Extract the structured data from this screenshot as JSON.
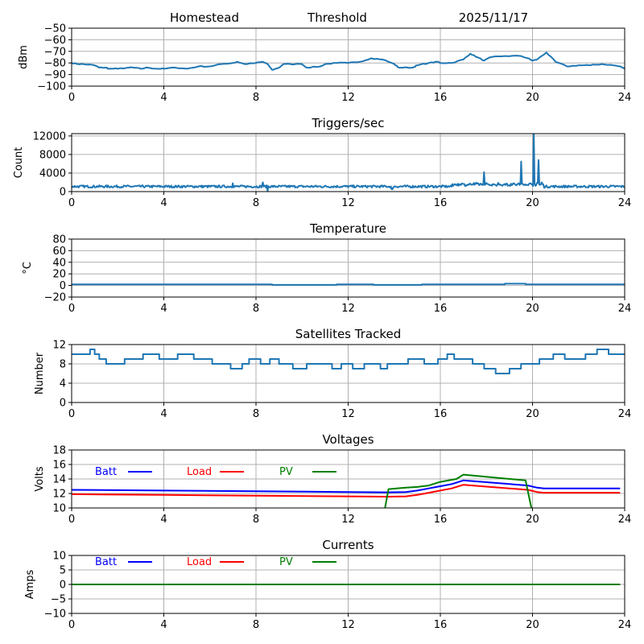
{
  "header": {
    "location": "Homestead",
    "mode": "Threshold",
    "date": "2025/11/17"
  },
  "chart_data": [
    {
      "id": "signal",
      "type": "line",
      "title": "",
      "xlabel": "",
      "ylabel": "dBm",
      "xlim": [
        0,
        24
      ],
      "ylim": [
        -100,
        -50
      ],
      "xticks": [
        "0",
        "4",
        "8",
        "12",
        "16",
        "20",
        "24"
      ],
      "yticks": [
        "−50",
        "−60",
        "−70",
        "−80",
        "−90",
        "−100"
      ],
      "ytick_values": [
        -50,
        -60,
        -70,
        -80,
        -90,
        -100
      ],
      "grid": true,
      "series": [
        {
          "name": "signal",
          "color": "#1f77b4",
          "x": [
            0,
            0.3,
            0.5,
            1.0,
            1.2,
            1.5,
            1.6,
            2.0,
            2.5,
            2.7,
            3.0,
            3.3,
            3.7,
            4.0,
            4.5,
            5.0,
            5.5,
            6.0,
            6.5,
            7.0,
            7.2,
            7.5,
            8.0,
            8.3,
            8.5,
            8.7,
            9.0,
            9.2,
            10.0,
            10.2,
            10.8,
            11.0,
            11.5,
            12.0,
            12.5,
            13.0,
            13.5,
            14.0,
            14.2,
            14.8,
            15.0,
            15.5,
            15.9,
            16.0,
            16.5,
            17.0,
            17.3,
            17.6,
            17.9,
            18.2,
            18.8,
            19.5,
            19.8,
            20.0,
            20.2,
            20.6,
            21.0,
            21.5,
            22.0,
            22.5,
            23.0,
            23.5,
            23.8,
            24.0
          ],
          "y": [
            -80,
            -81,
            -81,
            -82,
            -84,
            -84,
            -85,
            -85,
            -84,
            -84,
            -85,
            -84,
            -85,
            -85,
            -84,
            -85,
            -83,
            -83,
            -81,
            -80,
            -79,
            -81,
            -80,
            -79,
            -81,
            -86,
            -84,
            -81,
            -81,
            -84,
            -83,
            -81,
            -80,
            -80,
            -79,
            -76,
            -77,
            -81,
            -84,
            -84,
            -82,
            -80,
            -79,
            -80,
            -80,
            -77,
            -72,
            -75,
            -78,
            -75,
            -74,
            -74,
            -76,
            -78,
            -77,
            -71,
            -79,
            -83,
            -82,
            -82,
            -81,
            -82,
            -83,
            -85
          ]
        }
      ]
    },
    {
      "id": "triggers",
      "type": "line",
      "title": "Triggers/sec",
      "xlabel": "",
      "ylabel": "Count",
      "xlim": [
        0,
        24
      ],
      "ylim": [
        0,
        12500
      ],
      "xticks": [
        "0",
        "4",
        "8",
        "12",
        "16",
        "20",
        "24"
      ],
      "yticks": [
        "12000",
        "8000",
        "4000",
        "0"
      ],
      "ytick_values": [
        12000,
        8000,
        4000,
        0
      ],
      "grid": true,
      "series": [
        {
          "name": "triggers",
          "color": "#1f77b4",
          "baseline": 1100,
          "spikes": [
            [
              7.0,
              1800
            ],
            [
              8.3,
              2000
            ],
            [
              8.5,
              100
            ],
            [
              13.9,
              500
            ],
            [
              17.9,
              4200
            ],
            [
              19.5,
              6500
            ],
            [
              20.05,
              12500
            ],
            [
              20.25,
              6800
            ],
            [
              20.4,
              2000
            ]
          ]
        }
      ]
    },
    {
      "id": "temperature",
      "type": "line",
      "title": "Temperature",
      "xlabel": "",
      "ylabel": "°C",
      "xlim": [
        0,
        24
      ],
      "ylim": [
        -20,
        80
      ],
      "xticks": [
        "0",
        "4",
        "8",
        "12",
        "16",
        "20",
        "24"
      ],
      "yticks": [
        "80",
        "60",
        "40",
        "20",
        "0",
        "−20"
      ],
      "ytick_values": [
        80,
        60,
        40,
        20,
        0,
        -20
      ],
      "grid": true,
      "series": [
        {
          "name": "temperature",
          "color": "#1f77b4",
          "x": [
            0,
            8.7,
            8.7,
            11.5,
            11.5,
            13.1,
            13.1,
            15.2,
            15.2,
            18.8,
            18.8,
            19.7,
            19.7,
            24
          ],
          "y": [
            2,
            2,
            1,
            1,
            2,
            2,
            1,
            1,
            2,
            2,
            3,
            3,
            2,
            2
          ]
        }
      ]
    },
    {
      "id": "satellites",
      "type": "line",
      "title": "Satellites Tracked",
      "xlabel": "",
      "ylabel": "Number",
      "xlim": [
        0,
        24
      ],
      "ylim": [
        0,
        12
      ],
      "xticks": [
        "0",
        "4",
        "8",
        "12",
        "16",
        "20",
        "24"
      ],
      "yticks": [
        "12",
        "8",
        "4",
        "0"
      ],
      "ytick_values": [
        12,
        8,
        4,
        0
      ],
      "grid": true,
      "series": [
        {
          "name": "satellites",
          "color": "#1f77b4",
          "x": [
            0,
            0.8,
            0.8,
            1.0,
            1.0,
            1.2,
            1.2,
            1.5,
            1.5,
            2.3,
            2.3,
            3.1,
            3.1,
            3.8,
            3.8,
            4.6,
            4.6,
            5.3,
            5.3,
            6.1,
            6.1,
            6.9,
            6.9,
            7.4,
            7.4,
            7.7,
            7.7,
            8.2,
            8.2,
            8.6,
            8.6,
            9.0,
            9.0,
            9.6,
            9.6,
            10.2,
            10.2,
            11.3,
            11.3,
            11.7,
            11.7,
            12.2,
            12.2,
            12.7,
            12.7,
            13.4,
            13.4,
            13.7,
            13.7,
            14.6,
            14.6,
            15.3,
            15.3,
            15.9,
            15.9,
            16.3,
            16.3,
            16.6,
            16.6,
            17.4,
            17.4,
            17.9,
            17.9,
            18.4,
            18.4,
            19.0,
            19.0,
            19.5,
            19.5,
            20.3,
            20.3,
            20.9,
            20.9,
            21.4,
            21.4,
            22.3,
            22.3,
            22.8,
            22.8,
            23.3,
            23.3,
            24
          ],
          "y": [
            10,
            10,
            11,
            11,
            10,
            10,
            9,
            9,
            8,
            8,
            9,
            9,
            10,
            10,
            9,
            9,
            10,
            10,
            9,
            9,
            8,
            8,
            7,
            7,
            8,
            8,
            9,
            9,
            8,
            8,
            9,
            9,
            8,
            8,
            7,
            7,
            8,
            8,
            7,
            7,
            8,
            8,
            7,
            7,
            8,
            8,
            7,
            7,
            8,
            8,
            9,
            9,
            8,
            8,
            9,
            9,
            10,
            10,
            9,
            9,
            8,
            8,
            7,
            7,
            6,
            6,
            7,
            7,
            8,
            8,
            9,
            9,
            10,
            10,
            9,
            9,
            10,
            10,
            11,
            11,
            10,
            10
          ]
        }
      ]
    },
    {
      "id": "voltages",
      "type": "line",
      "title": "Voltages",
      "xlabel": "",
      "ylabel": "Volts",
      "xlim": [
        0,
        24
      ],
      "ylim": [
        10,
        18
      ],
      "xticks": [
        "0",
        "4",
        "8",
        "12",
        "16",
        "20",
        "24"
      ],
      "yticks": [
        "18",
        "16",
        "14",
        "12",
        "10"
      ],
      "ytick_values": [
        18,
        16,
        14,
        12,
        10
      ],
      "grid": true,
      "legend": [
        {
          "label": "Batt",
          "color": "#0000ff"
        },
        {
          "label": "Load",
          "color": "#ff0000"
        },
        {
          "label": "PV",
          "color": "#008000"
        }
      ],
      "series": [
        {
          "name": "Batt",
          "color": "#0000ff",
          "x": [
            0,
            4,
            8,
            12,
            13.7,
            14.5,
            15.0,
            15.5,
            16.0,
            16.5,
            17.0,
            19.8,
            20.2,
            20.5,
            23.8
          ],
          "y": [
            12.5,
            12.4,
            12.3,
            12.2,
            12.15,
            12.2,
            12.4,
            12.7,
            13.0,
            13.3,
            13.8,
            13.1,
            12.8,
            12.7,
            12.7
          ]
        },
        {
          "name": "Load",
          "color": "#ff0000",
          "x": [
            0,
            4,
            8,
            12,
            13.7,
            14.5,
            15.0,
            15.5,
            16.0,
            16.5,
            17.0,
            19.8,
            20.2,
            20.5,
            23.8
          ],
          "y": [
            11.9,
            11.8,
            11.7,
            11.6,
            11.55,
            11.6,
            11.8,
            12.1,
            12.4,
            12.7,
            13.2,
            12.5,
            12.2,
            12.1,
            12.1
          ]
        },
        {
          "name": "PV",
          "color": "#008000",
          "x": [
            13.6,
            13.75,
            14.5,
            15.0,
            15.5,
            16.0,
            16.7,
            17.0,
            19.7,
            19.95
          ],
          "y": [
            10,
            12.6,
            12.8,
            12.9,
            13.1,
            13.6,
            14.0,
            14.6,
            13.8,
            10
          ]
        }
      ]
    },
    {
      "id": "currents",
      "type": "line",
      "title": "Currents",
      "xlabel": "",
      "ylabel": "Amps",
      "xlim": [
        0,
        24
      ],
      "ylim": [
        -10,
        10
      ],
      "xticks": [
        "0",
        "4",
        "8",
        "12",
        "16",
        "20",
        "24"
      ],
      "yticks": [
        "10",
        "5",
        "0",
        "−5",
        "−10"
      ],
      "ytick_values": [
        10,
        5,
        0,
        -5,
        -10
      ],
      "grid": true,
      "legend": [
        {
          "label": "Batt",
          "color": "#0000ff"
        },
        {
          "label": "Load",
          "color": "#ff0000"
        },
        {
          "label": "PV",
          "color": "#008000"
        }
      ],
      "series": [
        {
          "name": "Batt",
          "color": "#0000ff",
          "x": [
            0,
            23.8
          ],
          "y": [
            0,
            0
          ]
        },
        {
          "name": "Load",
          "color": "#ff0000",
          "x": [
            0,
            23.8
          ],
          "y": [
            0,
            0
          ]
        },
        {
          "name": "PV",
          "color": "#008000",
          "x": [
            0,
            23.8
          ],
          "y": [
            0,
            0
          ]
        }
      ]
    }
  ]
}
